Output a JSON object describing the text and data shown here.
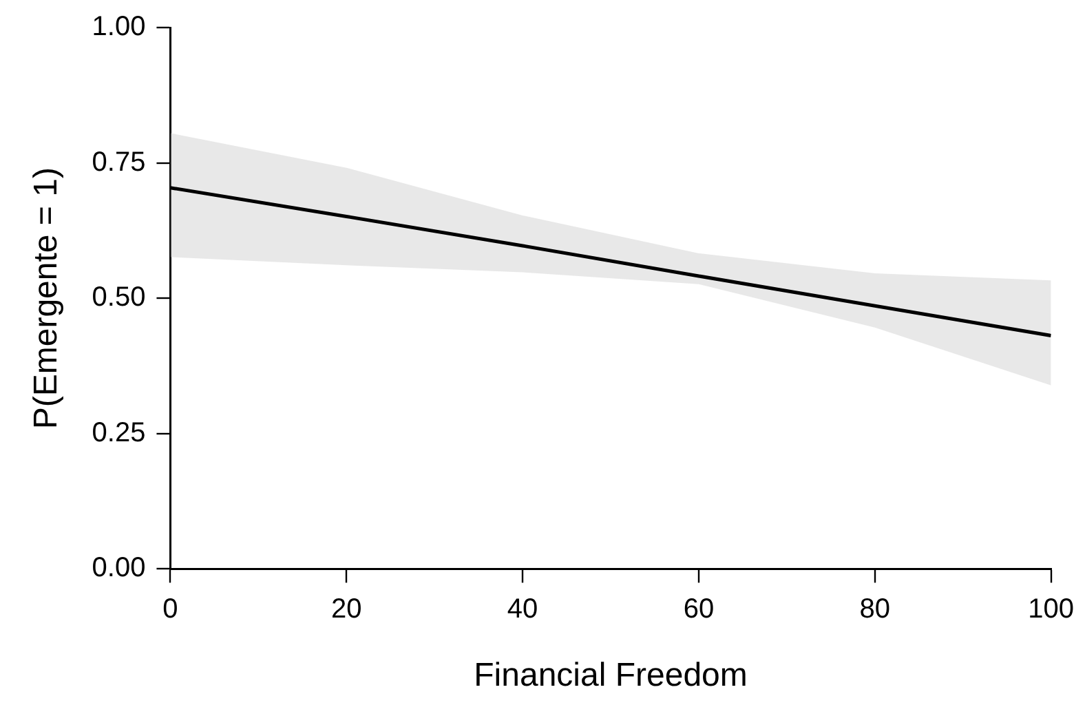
{
  "chart_data": {
    "type": "line",
    "xlabel": "Financial Freedom",
    "ylabel": "P(Emergente = 1)",
    "x": [
      0,
      20,
      40,
      60,
      80,
      100
    ],
    "series": [
      {
        "color": "#000000",
        "values": [
          0.704,
          0.651,
          0.597,
          0.541,
          0.486,
          0.431
        ],
        "lower": [
          0.576,
          0.561,
          0.548,
          0.526,
          0.446,
          0.339
        ],
        "upper": [
          0.805,
          0.741,
          0.653,
          0.583,
          0.546,
          0.533
        ]
      }
    ],
    "xlim": [
      0,
      100
    ],
    "xticks": [
      0,
      20,
      40,
      60,
      80,
      100
    ],
    "ylim": [
      0,
      1
    ],
    "yticks": [
      {
        "value": 0,
        "label": "0.00"
      },
      {
        "value": 0.25,
        "label": "0.25"
      },
      {
        "value": 0.5,
        "label": "0.50"
      },
      {
        "value": 0.75,
        "label": "0.75"
      },
      {
        "value": 1,
        "label": "1.00"
      }
    ],
    "grid": false,
    "legend": false,
    "marker": "none",
    "line_style": "solid"
  }
}
